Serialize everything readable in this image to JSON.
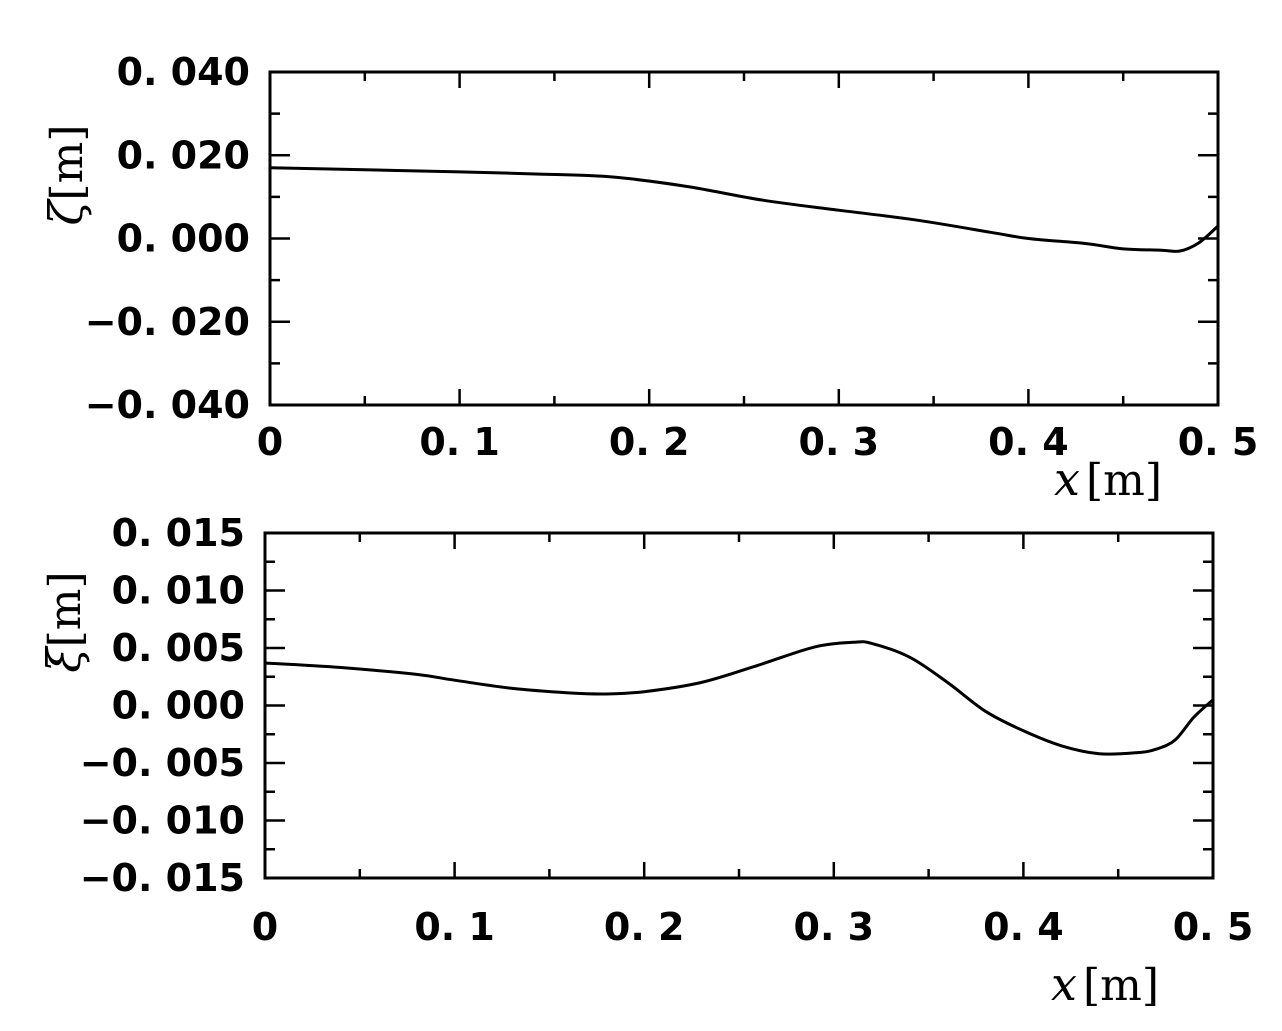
{
  "chart_data": [
    {
      "type": "line",
      "xlim": [
        0,
        0.5
      ],
      "ylim": [
        -0.04,
        0.04
      ],
      "x_ticks": [
        "0",
        "0. 1",
        "0. 2",
        "0. 3",
        "0. 4",
        "0. 5"
      ],
      "y_ticks": [
        "0. 040",
        "0. 020",
        "0. 000",
        "−0. 020",
        "−0. 040"
      ],
      "xlabel_symbol": "x",
      "xlabel_unit": "[m]",
      "ylabel_symbol": "ζ",
      "ylabel_unit": "[m]",
      "grid": false,
      "series": [
        {
          "x": [
            0,
            0.05,
            0.1,
            0.14,
            0.18,
            0.22,
            0.26,
            0.3,
            0.34,
            0.38,
            0.4,
            0.43,
            0.45,
            0.47,
            0.48,
            0.49,
            0.5
          ],
          "values": [
            0.017,
            0.0165,
            0.016,
            0.0155,
            0.0148,
            0.0125,
            0.0092,
            0.0068,
            0.0045,
            0.0015,
            0.0,
            -0.0012,
            -0.0025,
            -0.0028,
            -0.003,
            -0.001,
            0.003
          ]
        }
      ]
    },
    {
      "type": "line",
      "xlim": [
        0,
        0.5
      ],
      "ylim": [
        -0.015,
        0.015
      ],
      "x_ticks": [
        "0",
        "0. 1",
        "0. 2",
        "0. 3",
        "0. 4",
        "0. 5"
      ],
      "y_ticks": [
        "0. 015",
        "0. 010",
        "0. 005",
        "0. 000",
        "−0. 005",
        "−0. 010",
        "−0. 015"
      ],
      "xlabel_symbol": "x",
      "xlabel_unit": "[m]",
      "ylabel_symbol": "ξ",
      "ylabel_unit": "[m]",
      "grid": false,
      "series": [
        {
          "x": [
            0,
            0.04,
            0.08,
            0.1,
            0.13,
            0.16,
            0.18,
            0.2,
            0.23,
            0.26,
            0.29,
            0.31,
            0.32,
            0.34,
            0.36,
            0.38,
            0.4,
            0.42,
            0.44,
            0.46,
            0.47,
            0.48,
            0.49,
            0.5
          ],
          "values": [
            0.0037,
            0.0033,
            0.0027,
            0.0022,
            0.0015,
            0.0011,
            0.001,
            0.0012,
            0.002,
            0.0035,
            0.0051,
            0.0055,
            0.0054,
            0.0042,
            0.002,
            -0.0005,
            -0.0022,
            -0.0035,
            -0.0042,
            -0.0041,
            -0.0038,
            -0.003,
            -0.001,
            0.0005
          ]
        }
      ]
    }
  ]
}
